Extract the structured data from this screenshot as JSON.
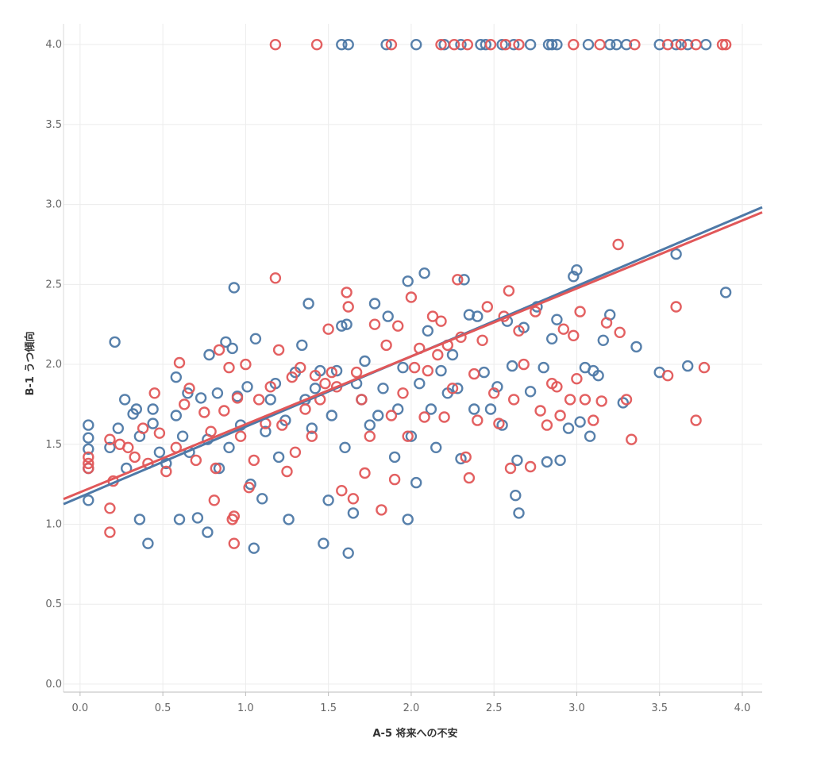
{
  "chart_data": {
    "type": "scatter",
    "xlabel": "A-5 将来への不安",
    "ylabel": "B-1 うつ傾向",
    "xlim": [
      -0.1,
      4.12
    ],
    "ylim": [
      -0.05,
      4.13
    ],
    "x_ticks": [
      "0.0",
      "0.5",
      "1.0",
      "1.5",
      "2.0",
      "2.5",
      "3.0",
      "3.5",
      "4.0"
    ],
    "y_ticks": [
      "0.0",
      "0.5",
      "1.0",
      "1.5",
      "2.0",
      "2.5",
      "3.0",
      "3.5",
      "4.0"
    ],
    "grid": true,
    "colors": {
      "blue": "#4e79a7",
      "red": "#e15759"
    },
    "series": [
      {
        "color": "#4e79a7",
        "trend": {
          "slope": 0.44,
          "intercept": 1.17
        },
        "points": [
          [
            0.05,
            1.15
          ],
          [
            0.05,
            1.47
          ],
          [
            0.05,
            1.54
          ],
          [
            0.05,
            1.62
          ],
          [
            0.05,
            1.35
          ],
          [
            0.18,
            1.48
          ],
          [
            0.21,
            2.14
          ],
          [
            0.23,
            1.6
          ],
          [
            0.27,
            1.78
          ],
          [
            0.28,
            1.35
          ],
          [
            0.32,
            1.69
          ],
          [
            0.34,
            1.72
          ],
          [
            0.36,
            1.03
          ],
          [
            0.36,
            1.55
          ],
          [
            0.41,
            0.88
          ],
          [
            0.44,
            1.72
          ],
          [
            0.44,
            1.63
          ],
          [
            0.48,
            1.45
          ],
          [
            0.52,
            1.38
          ],
          [
            0.58,
            1.68
          ],
          [
            0.58,
            1.92
          ],
          [
            0.6,
            1.03
          ],
          [
            0.62,
            1.55
          ],
          [
            0.65,
            1.82
          ],
          [
            0.66,
            1.45
          ],
          [
            0.71,
            1.04
          ],
          [
            0.73,
            1.79
          ],
          [
            0.77,
            0.95
          ],
          [
            0.77,
            1.53
          ],
          [
            0.78,
            2.06
          ],
          [
            0.83,
            1.82
          ],
          [
            0.84,
            1.35
          ],
          [
            0.88,
            2.14
          ],
          [
            0.9,
            1.48
          ],
          [
            0.92,
            2.1
          ],
          [
            0.93,
            2.48
          ],
          [
            0.95,
            1.8
          ],
          [
            0.97,
            1.62
          ],
          [
            1.01,
            1.86
          ],
          [
            1.03,
            1.25
          ],
          [
            1.05,
            0.85
          ],
          [
            1.06,
            2.16
          ],
          [
            1.1,
            1.16
          ],
          [
            1.12,
            1.58
          ],
          [
            1.15,
            1.78
          ],
          [
            1.18,
            1.88
          ],
          [
            1.2,
            1.42
          ],
          [
            1.24,
            1.65
          ],
          [
            1.26,
            1.03
          ],
          [
            1.3,
            1.95
          ],
          [
            1.34,
            2.12
          ],
          [
            1.36,
            1.78
          ],
          [
            1.38,
            2.38
          ],
          [
            1.4,
            1.6
          ],
          [
            1.42,
            1.85
          ],
          [
            1.45,
            1.96
          ],
          [
            1.47,
            0.88
          ],
          [
            1.5,
            1.15
          ],
          [
            1.52,
            1.68
          ],
          [
            1.55,
            1.96
          ],
          [
            1.58,
            2.24
          ],
          [
            1.6,
            1.48
          ],
          [
            1.61,
            2.25
          ],
          [
            1.62,
            0.82
          ],
          [
            1.65,
            1.07
          ],
          [
            1.67,
            1.88
          ],
          [
            1.7,
            1.78
          ],
          [
            1.72,
            2.02
          ],
          [
            1.75,
            1.62
          ],
          [
            1.78,
            2.38
          ],
          [
            1.8,
            1.68
          ],
          [
            1.83,
            1.85
          ],
          [
            1.86,
            2.3
          ],
          [
            1.9,
            1.42
          ],
          [
            1.92,
            1.72
          ],
          [
            1.95,
            1.98
          ],
          [
            1.98,
            1.03
          ],
          [
            1.98,
            2.52
          ],
          [
            2.0,
            1.55
          ],
          [
            2.03,
            1.26
          ],
          [
            2.05,
            1.88
          ],
          [
            2.08,
            2.57
          ],
          [
            2.1,
            2.21
          ],
          [
            2.12,
            1.72
          ],
          [
            2.15,
            1.48
          ],
          [
            2.18,
            1.96
          ],
          [
            2.22,
            1.82
          ],
          [
            2.25,
            2.06
          ],
          [
            2.28,
            1.85
          ],
          [
            2.3,
            1.41
          ],
          [
            2.32,
            2.53
          ],
          [
            2.35,
            2.31
          ],
          [
            2.38,
            1.72
          ],
          [
            2.4,
            2.3
          ],
          [
            2.44,
            1.95
          ],
          [
            2.48,
            1.72
          ],
          [
            2.52,
            1.86
          ],
          [
            2.55,
            1.62
          ],
          [
            2.58,
            2.27
          ],
          [
            2.61,
            1.99
          ],
          [
            2.63,
            1.18
          ],
          [
            2.64,
            1.4
          ],
          [
            2.65,
            1.07
          ],
          [
            2.68,
            2.23
          ],
          [
            2.72,
            1.83
          ],
          [
            2.76,
            2.36
          ],
          [
            2.8,
            1.98
          ],
          [
            2.82,
            1.39
          ],
          [
            2.85,
            2.16
          ],
          [
            2.88,
            2.28
          ],
          [
            2.9,
            1.4
          ],
          [
            2.95,
            1.6
          ],
          [
            2.98,
            2.55
          ],
          [
            3.0,
            2.59
          ],
          [
            3.02,
            1.64
          ],
          [
            3.05,
            1.98
          ],
          [
            3.08,
            1.55
          ],
          [
            3.1,
            1.96
          ],
          [
            3.13,
            1.93
          ],
          [
            3.16,
            2.15
          ],
          [
            3.2,
            2.31
          ],
          [
            3.28,
            1.76
          ],
          [
            3.36,
            2.11
          ],
          [
            3.5,
            1.95
          ],
          [
            3.6,
            2.69
          ],
          [
            3.67,
            1.99
          ],
          [
            3.9,
            2.45
          ],
          [
            1.58,
            4.0
          ],
          [
            1.62,
            4.0
          ],
          [
            1.85,
            4.0
          ],
          [
            2.03,
            4.0
          ],
          [
            2.2,
            4.0
          ],
          [
            2.3,
            4.0
          ],
          [
            2.42,
            4.0
          ],
          [
            2.45,
            4.0
          ],
          [
            2.55,
            4.0
          ],
          [
            2.62,
            4.0
          ],
          [
            2.72,
            4.0
          ],
          [
            2.83,
            4.0
          ],
          [
            2.85,
            4.0
          ],
          [
            2.88,
            4.0
          ],
          [
            3.07,
            4.0
          ],
          [
            3.2,
            4.0
          ],
          [
            3.24,
            4.0
          ],
          [
            3.3,
            4.0
          ],
          [
            3.5,
            4.0
          ],
          [
            3.6,
            4.0
          ],
          [
            3.67,
            4.0
          ],
          [
            3.78,
            4.0
          ]
        ]
      },
      {
        "color": "#e15759",
        "trend": {
          "slope": 0.425,
          "intercept": 1.2
        },
        "points": [
          [
            0.05,
            1.42
          ],
          [
            0.05,
            1.38
          ],
          [
            0.05,
            1.35
          ],
          [
            0.18,
            1.53
          ],
          [
            0.18,
            1.1
          ],
          [
            0.18,
            0.95
          ],
          [
            0.2,
            1.27
          ],
          [
            0.24,
            1.5
          ],
          [
            0.29,
            1.48
          ],
          [
            0.33,
            1.42
          ],
          [
            0.38,
            1.6
          ],
          [
            0.41,
            1.38
          ],
          [
            0.45,
            1.82
          ],
          [
            0.48,
            1.57
          ],
          [
            0.52,
            1.33
          ],
          [
            0.58,
            1.48
          ],
          [
            0.6,
            2.01
          ],
          [
            0.63,
            1.75
          ],
          [
            0.66,
            1.85
          ],
          [
            0.7,
            1.4
          ],
          [
            0.75,
            1.7
          ],
          [
            0.79,
            1.58
          ],
          [
            0.81,
            1.15
          ],
          [
            0.82,
            1.35
          ],
          [
            0.84,
            2.09
          ],
          [
            0.87,
            1.71
          ],
          [
            0.9,
            1.98
          ],
          [
            0.92,
            1.03
          ],
          [
            0.93,
            1.05
          ],
          [
            0.93,
            0.88
          ],
          [
            0.95,
            1.79
          ],
          [
            0.97,
            1.55
          ],
          [
            1.0,
            2.0
          ],
          [
            1.02,
            1.23
          ],
          [
            1.05,
            1.4
          ],
          [
            1.08,
            1.78
          ],
          [
            1.12,
            1.63
          ],
          [
            1.15,
            1.86
          ],
          [
            1.18,
            2.54
          ],
          [
            1.2,
            2.09
          ],
          [
            1.22,
            1.62
          ],
          [
            1.25,
            1.33
          ],
          [
            1.28,
            1.92
          ],
          [
            1.3,
            1.45
          ],
          [
            1.33,
            1.98
          ],
          [
            1.36,
            1.72
          ],
          [
            1.4,
            1.55
          ],
          [
            1.42,
            1.93
          ],
          [
            1.45,
            1.78
          ],
          [
            1.48,
            1.88
          ],
          [
            1.5,
            2.22
          ],
          [
            1.52,
            1.95
          ],
          [
            1.55,
            1.86
          ],
          [
            1.58,
            1.21
          ],
          [
            1.61,
            2.45
          ],
          [
            1.62,
            2.36
          ],
          [
            1.65,
            1.16
          ],
          [
            1.67,
            1.95
          ],
          [
            1.7,
            1.78
          ],
          [
            1.72,
            1.32
          ],
          [
            1.75,
            1.55
          ],
          [
            1.78,
            2.25
          ],
          [
            1.82,
            1.09
          ],
          [
            1.85,
            2.12
          ],
          [
            1.88,
            1.68
          ],
          [
            1.9,
            1.28
          ],
          [
            1.92,
            2.24
          ],
          [
            1.95,
            1.82
          ],
          [
            1.98,
            1.55
          ],
          [
            2.0,
            2.42
          ],
          [
            2.02,
            1.98
          ],
          [
            2.05,
            2.1
          ],
          [
            2.08,
            1.67
          ],
          [
            2.1,
            1.96
          ],
          [
            2.13,
            2.3
          ],
          [
            2.16,
            2.06
          ],
          [
            2.18,
            2.27
          ],
          [
            2.2,
            1.67
          ],
          [
            2.22,
            2.12
          ],
          [
            2.25,
            1.85
          ],
          [
            2.28,
            2.53
          ],
          [
            2.3,
            2.17
          ],
          [
            2.33,
            1.42
          ],
          [
            2.35,
            1.29
          ],
          [
            2.38,
            1.94
          ],
          [
            2.4,
            1.65
          ],
          [
            2.43,
            2.15
          ],
          [
            2.46,
            2.36
          ],
          [
            2.5,
            1.82
          ],
          [
            2.53,
            1.63
          ],
          [
            2.56,
            2.3
          ],
          [
            2.59,
            2.46
          ],
          [
            2.6,
            1.35
          ],
          [
            2.62,
            1.78
          ],
          [
            2.65,
            2.21
          ],
          [
            2.68,
            2.0
          ],
          [
            2.72,
            1.36
          ],
          [
            2.75,
            2.33
          ],
          [
            2.78,
            1.71
          ],
          [
            2.82,
            1.62
          ],
          [
            2.85,
            1.88
          ],
          [
            2.88,
            1.86
          ],
          [
            2.9,
            1.68
          ],
          [
            2.92,
            2.22
          ],
          [
            2.96,
            1.78
          ],
          [
            2.98,
            2.18
          ],
          [
            3.0,
            1.91
          ],
          [
            3.02,
            2.33
          ],
          [
            3.05,
            1.78
          ],
          [
            3.1,
            1.65
          ],
          [
            3.15,
            1.77
          ],
          [
            3.18,
            2.26
          ],
          [
            3.25,
            2.75
          ],
          [
            3.26,
            2.2
          ],
          [
            3.3,
            1.78
          ],
          [
            3.33,
            1.53
          ],
          [
            3.55,
            1.93
          ],
          [
            3.6,
            2.36
          ],
          [
            3.72,
            1.65
          ],
          [
            3.77,
            1.98
          ],
          [
            1.18,
            4.0
          ],
          [
            1.43,
            4.0
          ],
          [
            1.88,
            4.0
          ],
          [
            2.18,
            4.0
          ],
          [
            2.26,
            4.0
          ],
          [
            2.34,
            4.0
          ],
          [
            2.48,
            4.0
          ],
          [
            2.57,
            4.0
          ],
          [
            2.65,
            4.0
          ],
          [
            2.98,
            4.0
          ],
          [
            3.14,
            4.0
          ],
          [
            3.35,
            4.0
          ],
          [
            3.55,
            4.0
          ],
          [
            3.63,
            4.0
          ],
          [
            3.72,
            4.0
          ],
          [
            3.88,
            4.0
          ],
          [
            3.9,
            4.0
          ]
        ]
      }
    ]
  }
}
